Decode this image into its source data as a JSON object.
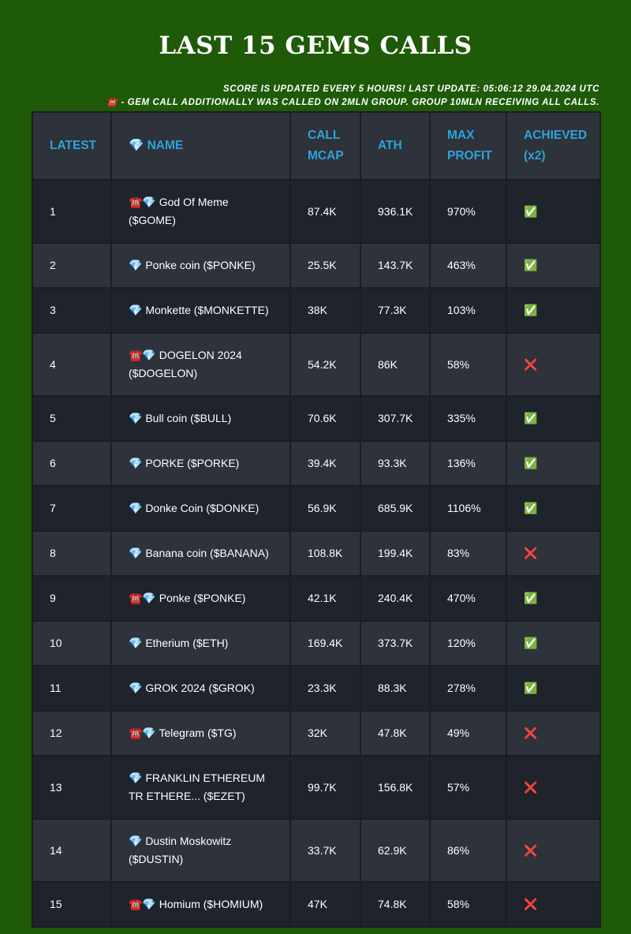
{
  "header": {
    "title": "LAST 15 GEMS CALLS",
    "notes": [
      "SCORE IS UPDATED EVERY 5 HOURS! LAST UPDATE: 05:06:12 29.04.2024 UTC",
      "☎️ - GEM CALL ADDITIONALLY WAS CALLED ON 2MLN GROUP. GROUP 10MLN RECEIVING ALL CALLS."
    ]
  },
  "table": {
    "headers": [
      "LATEST",
      "💎 NAME",
      "CALL MCAP",
      "ATH",
      "MAX PROFIT",
      "ACHIEVED (x2)"
    ],
    "rows": [
      [
        "1",
        "☎️💎 God Of Meme ($GOME)",
        "87.4K",
        "936.1K",
        "970%",
        "✅"
      ],
      [
        "2",
        "💎 Ponke coin ($PONKE)",
        "25.5K",
        "143.7K",
        "463%",
        "✅"
      ],
      [
        "3",
        "💎 Monkette ($MONKETTE)",
        "38K",
        "77.3K",
        "103%",
        "✅"
      ],
      [
        "4",
        "☎️💎 DOGELON 2024 ($DOGELON)",
        "54.2K",
        "86K",
        "58%",
        "❌"
      ],
      [
        "5",
        "💎 Bull coin ($BULL)",
        "70.6K",
        "307.7K",
        "335%",
        "✅"
      ],
      [
        "6",
        "💎 PORKE ($PORKE)",
        "39.4K",
        "93.3K",
        "136%",
        "✅"
      ],
      [
        "7",
        "💎 Donke Coin ($DONKE)",
        "56.9K",
        "685.9K",
        "1106%",
        "✅"
      ],
      [
        "8",
        "💎 Banana coin ($BANANA)",
        "108.8K",
        "199.4K",
        "83%",
        "❌"
      ],
      [
        "9",
        "☎️💎 Ponke ($PONKE)",
        "42.1K",
        "240.4K",
        "470%",
        "✅"
      ],
      [
        "10",
        "💎 Etherium ($ETH)",
        "169.4K",
        "373.7K",
        "120%",
        "✅"
      ],
      [
        "11",
        "💎 GROK 2024 ($GROK)",
        "23.3K",
        "88.3K",
        "278%",
        "✅"
      ],
      [
        "12",
        "☎️💎 Telegram ($TG)",
        "32K",
        "47.8K",
        "49%",
        "❌"
      ],
      [
        "13",
        "💎 FRANKLIN ETHEREUM TR ETHERE... ($EZET)",
        "99.7K",
        "156.8K",
        "57%",
        "❌"
      ],
      [
        "14",
        "💎 Dustin Moskowitz ($DUSTIN)",
        "33.7K",
        "62.9K",
        "86%",
        "❌"
      ],
      [
        "15",
        "☎️💎 Homium ($HOMIUM)",
        "47K",
        "74.8K",
        "58%",
        "❌"
      ]
    ]
  }
}
